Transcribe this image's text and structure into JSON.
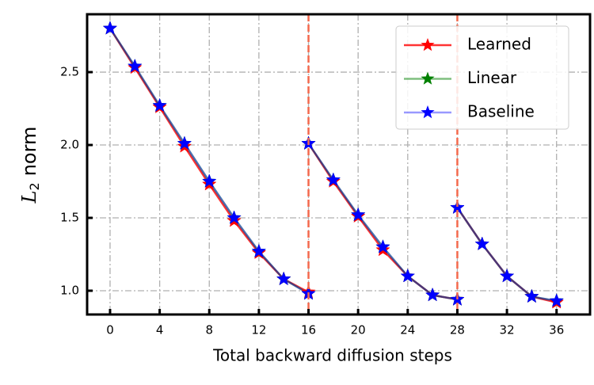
{
  "chart_data": {
    "type": "line",
    "xlabel": "Total backward diffusion steps",
    "ylabel": {
      "symbol": "L",
      "subscript": "2",
      "text": "norm"
    },
    "x": [
      0,
      2,
      4,
      6,
      8,
      10,
      12,
      14,
      16,
      null,
      16,
      18,
      20,
      22,
      24,
      26,
      28,
      null,
      28,
      30,
      32,
      34,
      36
    ],
    "series": [
      {
        "name": "Learned",
        "color": "red",
        "line_opacity": 0.8,
        "values": [
          2.8,
          2.53,
          2.26,
          1.99,
          1.73,
          1.48,
          1.26,
          1.08,
          0.99,
          null,
          2.01,
          1.75,
          1.51,
          1.28,
          1.1,
          0.97,
          0.94,
          null,
          1.57,
          1.32,
          1.1,
          0.96,
          0.92
        ]
      },
      {
        "name": "Linear",
        "color": "green",
        "line_opacity": 0.5,
        "values": [
          2.8,
          2.54,
          2.27,
          2.01,
          1.75,
          1.5,
          1.27,
          1.08,
          0.98,
          null,
          2.01,
          1.76,
          1.52,
          1.3,
          1.1,
          0.97,
          0.94,
          null,
          1.57,
          1.32,
          1.1,
          0.96,
          0.93
        ]
      },
      {
        "name": "Baseline",
        "color": "blue",
        "line_opacity": 0.4,
        "values": [
          2.8,
          2.54,
          2.27,
          2.01,
          1.75,
          1.5,
          1.27,
          1.08,
          0.98,
          null,
          2.01,
          1.76,
          1.52,
          1.3,
          1.1,
          0.97,
          0.94,
          null,
          1.57,
          1.32,
          1.1,
          0.96,
          0.93
        ]
      }
    ],
    "vlines": [
      16,
      28
    ],
    "vline_color": "#f4694d",
    "xlim": [
      -1.85,
      38.7
    ],
    "xticks": [
      0,
      4,
      8,
      12,
      16,
      20,
      24,
      28,
      32,
      36
    ],
    "ylim": [
      0.837,
      2.897
    ],
    "yticks": [
      {
        "value": 1.0,
        "label": "1.0"
      },
      1.5,
      {
        "value": 2.0,
        "label": "2.0"
      },
      2.5
    ],
    "grid": true,
    "legend": "upper right"
  }
}
